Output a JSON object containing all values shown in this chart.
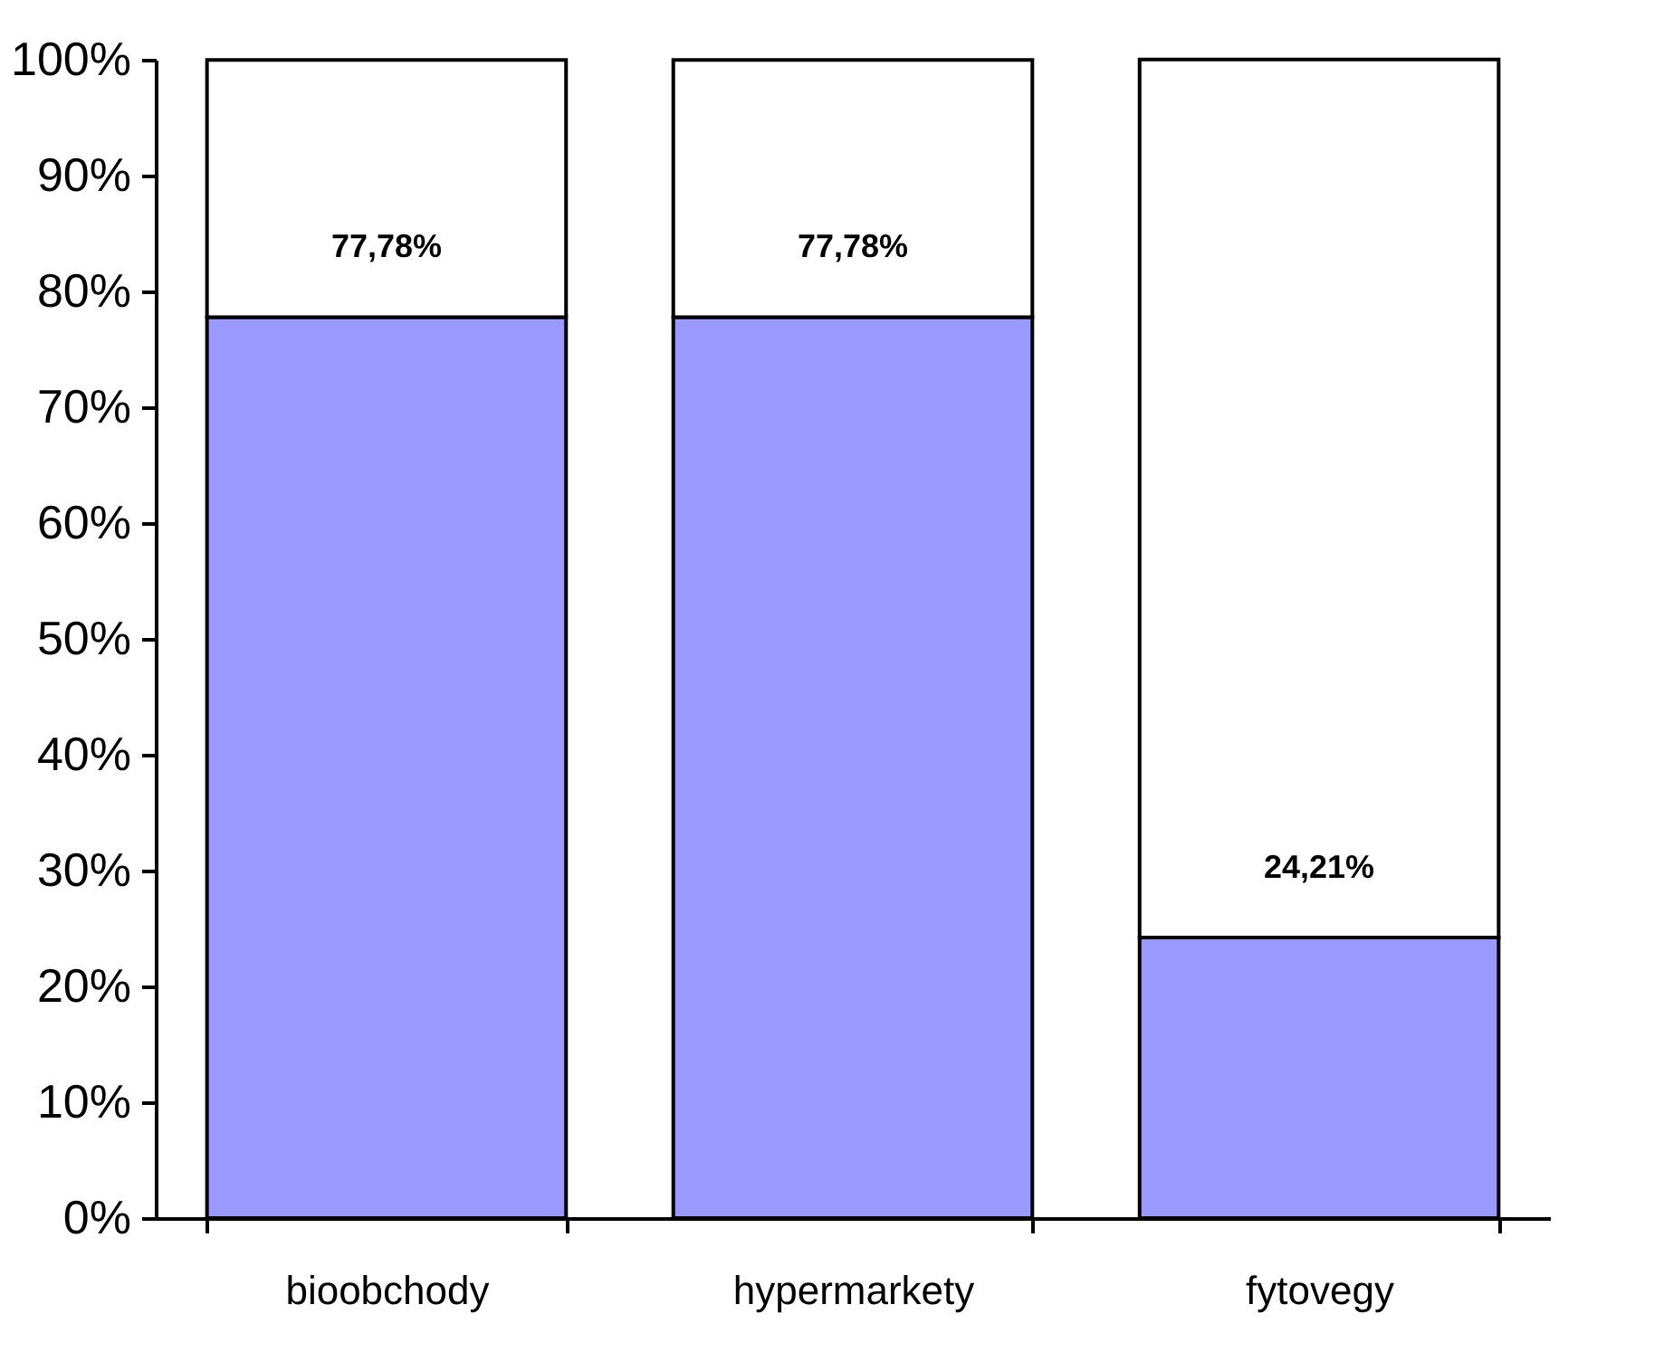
{
  "chart_data": {
    "type": "bar",
    "stacked": true,
    "categories": [
      "bioobchody",
      "hypermarkety",
      "fytovegy"
    ],
    "series": [
      {
        "color": "#9999ff",
        "values": [
          77.78,
          77.78,
          24.21
        ],
        "value_labels": [
          "77,78%",
          "77,78%",
          "24,21%"
        ]
      },
      {
        "color": "#ffffff",
        "values": [
          22.2,
          22.2,
          75.8
        ]
      }
    ],
    "ylim": [
      0,
      100
    ],
    "yticks": [
      {
        "value": 0,
        "label": "0%"
      },
      {
        "value": 10,
        "label": "10%"
      },
      {
        "value": 20,
        "label": "20%"
      },
      {
        "value": 30,
        "label": "30%"
      },
      {
        "value": 40,
        "label": "40%"
      },
      {
        "value": 50,
        "label": "50%"
      },
      {
        "value": 60,
        "label": "60%"
      },
      {
        "value": 70,
        "label": "70%"
      },
      {
        "value": 80,
        "label": "80%"
      },
      {
        "value": 90,
        "label": "90%"
      },
      {
        "value": 100,
        "label": "100%"
      }
    ],
    "grid": false
  }
}
